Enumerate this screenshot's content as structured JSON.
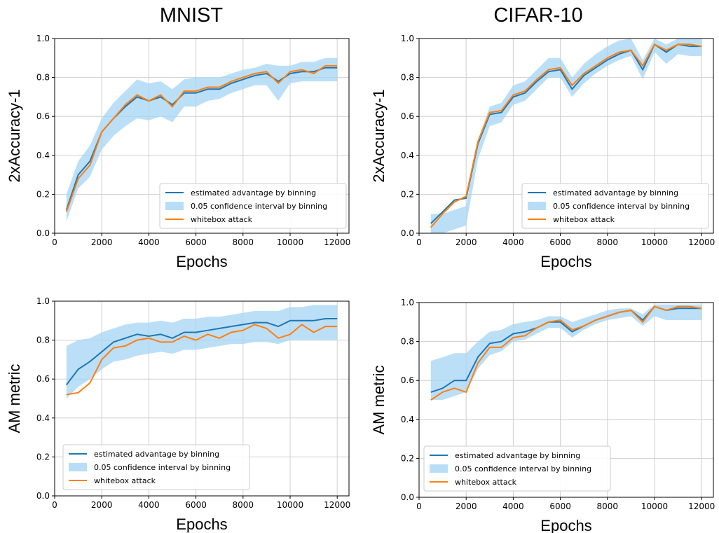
{
  "columns": [
    {
      "title": "MNIST"
    },
    {
      "title": "CIFAR-10"
    }
  ],
  "colors": {
    "estimate": "#1f77b4",
    "whitebox": "#ff7f0e",
    "band_fill": "#a6d4f5",
    "grid": "#cfcfcf"
  },
  "legend_labels": {
    "estimate": "estimated advantage by binning",
    "ci": "0.05 confidence interval by binning",
    "whitebox": "whitebox attack"
  },
  "chart_data": [
    {
      "type": "line",
      "dataset": "MNIST",
      "xlabel": "Epochs",
      "ylabel": "2xAccuracy-1",
      "xlim": [
        0,
        12500
      ],
      "ylim": [
        0.0,
        1.0
      ],
      "xticks": [
        0,
        2000,
        4000,
        6000,
        8000,
        10000,
        12000
      ],
      "yticks": [
        0.0,
        0.2,
        0.4,
        0.6,
        0.8,
        1.0
      ],
      "grid": true,
      "legend_position": "lower right",
      "x": [
        500,
        1000,
        1500,
        2000,
        2500,
        3000,
        3500,
        4000,
        4500,
        5000,
        5500,
        6000,
        6500,
        7000,
        7500,
        8000,
        8500,
        9000,
        9500,
        10000,
        10500,
        11000,
        11500,
        12000
      ],
      "series": [
        {
          "name": "estimated advantage by binning",
          "kind": "line",
          "values": [
            0.12,
            0.3,
            0.37,
            0.52,
            0.59,
            0.65,
            0.7,
            0.68,
            0.7,
            0.66,
            0.72,
            0.72,
            0.74,
            0.74,
            0.77,
            0.79,
            0.81,
            0.82,
            0.78,
            0.82,
            0.83,
            0.83,
            0.85,
            0.85
          ]
        },
        {
          "name": "0.05 confidence interval by binning",
          "kind": "band",
          "lower": [
            0.06,
            0.23,
            0.29,
            0.43,
            0.5,
            0.55,
            0.59,
            0.58,
            0.6,
            0.57,
            0.65,
            0.65,
            0.68,
            0.69,
            0.72,
            0.74,
            0.76,
            0.76,
            0.68,
            0.77,
            0.78,
            0.78,
            0.78,
            0.78
          ],
          "upper": [
            0.2,
            0.37,
            0.45,
            0.59,
            0.67,
            0.73,
            0.79,
            0.77,
            0.78,
            0.74,
            0.79,
            0.8,
            0.8,
            0.8,
            0.82,
            0.84,
            0.85,
            0.87,
            0.86,
            0.86,
            0.88,
            0.88,
            0.9,
            0.9
          ]
        },
        {
          "name": "whitebox attack",
          "kind": "line",
          "values": [
            0.11,
            0.28,
            0.35,
            0.52,
            0.59,
            0.66,
            0.71,
            0.68,
            0.71,
            0.65,
            0.73,
            0.73,
            0.75,
            0.75,
            0.78,
            0.8,
            0.82,
            0.83,
            0.77,
            0.83,
            0.84,
            0.82,
            0.86,
            0.86
          ]
        }
      ]
    },
    {
      "type": "line",
      "dataset": "CIFAR-10",
      "xlabel": "Epochs",
      "ylabel": "2xAccuracy-1",
      "xlim": [
        0,
        12500
      ],
      "ylim": [
        0.0,
        1.0
      ],
      "xticks": [
        0,
        2000,
        4000,
        6000,
        8000,
        10000,
        12000
      ],
      "yticks": [
        0.0,
        0.2,
        0.4,
        0.6,
        0.8,
        1.0
      ],
      "grid": true,
      "legend_position": "lower right",
      "x": [
        500,
        1000,
        1500,
        2000,
        2500,
        3000,
        3500,
        4000,
        4500,
        5000,
        5500,
        6000,
        6500,
        7000,
        7500,
        8000,
        8500,
        9000,
        9500,
        10000,
        10500,
        11000,
        11500,
        12000
      ],
      "series": [
        {
          "name": "estimated advantage by binning",
          "kind": "line",
          "values": [
            0.05,
            0.11,
            0.17,
            0.18,
            0.46,
            0.61,
            0.62,
            0.7,
            0.72,
            0.78,
            0.83,
            0.84,
            0.74,
            0.81,
            0.85,
            0.89,
            0.92,
            0.94,
            0.84,
            0.97,
            0.93,
            0.97,
            0.96,
            0.96
          ]
        },
        {
          "name": "0.05 confidence interval by binning",
          "kind": "band",
          "lower": [
            0.0,
            0.0,
            0.02,
            0.04,
            0.38,
            0.55,
            0.57,
            0.66,
            0.68,
            0.74,
            0.8,
            0.8,
            0.7,
            0.77,
            0.82,
            0.86,
            0.89,
            0.91,
            0.79,
            0.93,
            0.87,
            0.92,
            0.91,
            0.91
          ]
        },
        {
          "name": "whitebox attack",
          "kind": "line",
          "values": [
            0.03,
            0.1,
            0.16,
            0.19,
            0.47,
            0.62,
            0.63,
            0.71,
            0.73,
            0.79,
            0.84,
            0.85,
            0.76,
            0.82,
            0.86,
            0.9,
            0.93,
            0.94,
            0.86,
            0.97,
            0.94,
            0.97,
            0.97,
            0.96
          ]
        }
      ]
    },
    {
      "type": "line",
      "dataset": "MNIST",
      "xlabel": "Epochs",
      "ylabel": "AM metric",
      "xlim": [
        0,
        12500
      ],
      "ylim": [
        0.0,
        1.0
      ],
      "xticks": [
        0,
        2000,
        4000,
        6000,
        8000,
        10000,
        12000
      ],
      "yticks": [
        0.0,
        0.2,
        0.4,
        0.6,
        0.8,
        1.0
      ],
      "grid": true,
      "legend_position": "lower left",
      "x": [
        500,
        1000,
        1500,
        2000,
        2500,
        3000,
        3500,
        4000,
        4500,
        5000,
        5500,
        6000,
        6500,
        7000,
        7500,
        8000,
        8500,
        9000,
        9500,
        10000,
        10500,
        11000,
        11500,
        12000
      ],
      "series": [
        {
          "name": "estimated advantage by binning",
          "kind": "line",
          "values": [
            0.57,
            0.65,
            0.69,
            0.74,
            0.79,
            0.81,
            0.83,
            0.82,
            0.83,
            0.81,
            0.84,
            0.84,
            0.85,
            0.86,
            0.87,
            0.88,
            0.89,
            0.89,
            0.87,
            0.9,
            0.9,
            0.9,
            0.91,
            0.91
          ]
        },
        {
          "name": "0.05 confidence interval by binning",
          "kind": "band",
          "lower": [
            0.5,
            0.56,
            0.6,
            0.65,
            0.69,
            0.7,
            0.72,
            0.73,
            0.74,
            0.73,
            0.75,
            0.75,
            0.76,
            0.77,
            0.78,
            0.78,
            0.79,
            0.79,
            0.78,
            0.8,
            0.8,
            0.8,
            0.8,
            0.8
          ],
          "upper": [
            0.77,
            0.8,
            0.81,
            0.84,
            0.86,
            0.88,
            0.89,
            0.89,
            0.9,
            0.89,
            0.91,
            0.91,
            0.92,
            0.92,
            0.93,
            0.94,
            0.95,
            0.95,
            0.95,
            0.97,
            0.97,
            0.98,
            0.98,
            0.98
          ]
        },
        {
          "name": "whitebox attack",
          "kind": "line",
          "values": [
            0.52,
            0.53,
            0.58,
            0.7,
            0.76,
            0.77,
            0.8,
            0.81,
            0.79,
            0.79,
            0.82,
            0.8,
            0.83,
            0.81,
            0.84,
            0.85,
            0.88,
            0.86,
            0.81,
            0.83,
            0.88,
            0.84,
            0.87,
            0.87
          ]
        }
      ]
    },
    {
      "type": "line",
      "dataset": "CIFAR-10",
      "xlabel": "Epochs",
      "ylabel": "AM metric",
      "xlim": [
        0,
        12500
      ],
      "ylim": [
        0.0,
        1.0
      ],
      "xticks": [
        0,
        2000,
        4000,
        6000,
        8000,
        10000,
        12000
      ],
      "yticks": [
        0.0,
        0.2,
        0.4,
        0.6,
        0.8,
        1.0
      ],
      "grid": true,
      "legend_position": "lower left",
      "x": [
        500,
        1000,
        1500,
        2000,
        2500,
        3000,
        3500,
        4000,
        4500,
        5000,
        5500,
        6000,
        6500,
        7000,
        7500,
        8000,
        8500,
        9000,
        9500,
        10000,
        10500,
        11000,
        11500,
        12000
      ],
      "series": [
        {
          "name": "estimated advantage by binning",
          "kind": "line",
          "values": [
            0.54,
            0.56,
            0.6,
            0.6,
            0.72,
            0.79,
            0.8,
            0.84,
            0.85,
            0.87,
            0.9,
            0.9,
            0.85,
            0.88,
            0.91,
            0.93,
            0.95,
            0.96,
            0.91,
            0.98,
            0.96,
            0.97,
            0.97,
            0.97
          ]
        },
        {
          "name": "0.05 confidence interval by binning",
          "kind": "band",
          "lower": [
            0.5,
            0.5,
            0.52,
            0.54,
            0.66,
            0.73,
            0.75,
            0.8,
            0.81,
            0.84,
            0.87,
            0.87,
            0.82,
            0.86,
            0.89,
            0.91,
            0.92,
            0.93,
            0.88,
            0.93,
            0.91,
            0.91,
            0.91,
            0.91
          ],
          "upper": [
            0.7,
            0.72,
            0.74,
            0.74,
            0.8,
            0.85,
            0.86,
            0.89,
            0.9,
            0.91,
            0.93,
            0.93,
            0.9,
            0.92,
            0.94,
            0.96,
            0.97,
            0.97,
            0.94,
            0.99,
            0.99,
            0.99,
            0.99,
            0.99
          ]
        },
        {
          "name": "whitebox attack",
          "kind": "line",
          "values": [
            0.5,
            0.54,
            0.56,
            0.54,
            0.69,
            0.77,
            0.77,
            0.82,
            0.83,
            0.87,
            0.9,
            0.91,
            0.86,
            0.88,
            0.91,
            0.93,
            0.95,
            0.96,
            0.9,
            0.98,
            0.96,
            0.98,
            0.98,
            0.97
          ]
        }
      ]
    }
  ]
}
